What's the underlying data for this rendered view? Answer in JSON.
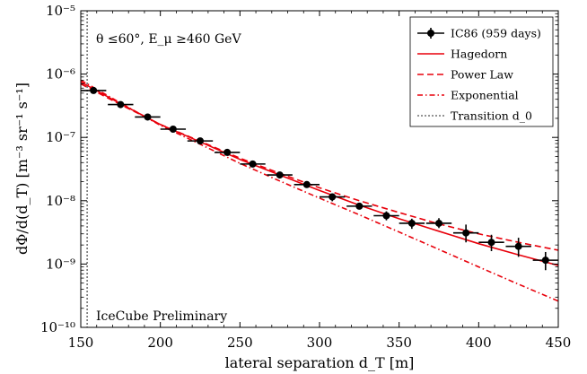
{
  "chart_data": {
    "type": "scatter",
    "xlabel": "lateral separation d_T [m]",
    "ylabel": "dΦ/d(d_T)  [m⁻³ sr⁻¹ s⁻¹]",
    "xlim": [
      150,
      450
    ],
    "ylim": [
      1e-10,
      1e-05
    ],
    "y_scale": "log",
    "x_ticks": [
      "150",
      "200",
      "250",
      "300",
      "350",
      "400",
      "450"
    ],
    "y_ticks": [
      "10⁻¹⁰",
      "10⁻⁹",
      "10⁻⁸",
      "10⁻⁷",
      "10⁻⁶",
      "10⁻⁵"
    ],
    "annotations": {
      "cut": "θ ≤60°,  E_μ ≥460 GeV",
      "preliminary": "IceCube Preliminary"
    },
    "legend_position": "top-right",
    "series": [
      {
        "name": "IC86 (959 days)",
        "kind": "data",
        "color": "#000000",
        "points": [
          {
            "x": 158,
            "xerr": 8,
            "y": 5.5e-07,
            "ylo": 5.1e-07,
            "yhi": 5.9e-07
          },
          {
            "x": 175,
            "xerr": 8,
            "y": 3.3e-07,
            "ylo": 3.1e-07,
            "yhi": 3.5e-07
          },
          {
            "x": 192,
            "xerr": 8,
            "y": 2.1e-07,
            "ylo": 1.95e-07,
            "yhi": 2.25e-07
          },
          {
            "x": 208,
            "xerr": 8,
            "y": 1.35e-07,
            "ylo": 1.26e-07,
            "yhi": 1.45e-07
          },
          {
            "x": 225,
            "xerr": 8,
            "y": 8.8e-08,
            "ylo": 8.2e-08,
            "yhi": 9.4e-08
          },
          {
            "x": 242,
            "xerr": 8,
            "y": 5.8e-08,
            "ylo": 5.4e-08,
            "yhi": 6.2e-08
          },
          {
            "x": 258,
            "xerr": 8,
            "y": 3.8e-08,
            "ylo": 3.5e-08,
            "yhi": 4.1e-08
          },
          {
            "x": 275,
            "xerr": 8,
            "y": 2.55e-08,
            "ylo": 2.35e-08,
            "yhi": 2.75e-08
          },
          {
            "x": 292,
            "xerr": 8,
            "y": 1.8e-08,
            "ylo": 1.6e-08,
            "yhi": 2e-08
          },
          {
            "x": 308,
            "xerr": 8,
            "y": 1.15e-08,
            "ylo": 9.8e-09,
            "yhi": 1.3e-08
          },
          {
            "x": 325,
            "xerr": 8,
            "y": 8.2e-09,
            "ylo": 7.3e-09,
            "yhi": 9.1e-09
          },
          {
            "x": 342,
            "xerr": 8,
            "y": 5.8e-09,
            "ylo": 4.9e-09,
            "yhi": 6.8e-09
          },
          {
            "x": 358,
            "xerr": 8,
            "y": 4.4e-09,
            "ylo": 3.6e-09,
            "yhi": 5.2e-09
          },
          {
            "x": 375,
            "xerr": 8,
            "y": 4.4e-09,
            "ylo": 3.7e-09,
            "yhi": 5.3e-09
          },
          {
            "x": 392,
            "xerr": 8,
            "y": 3.1e-09,
            "ylo": 2.2e-09,
            "yhi": 4.2e-09
          },
          {
            "x": 408,
            "xerr": 8,
            "y": 2.2e-09,
            "ylo": 1.6e-09,
            "yhi": 2.9e-09
          },
          {
            "x": 425,
            "xerr": 8,
            "y": 1.9e-09,
            "ylo": 1.3e-09,
            "yhi": 2.6e-09
          },
          {
            "x": 442,
            "xerr": 8,
            "y": 1.15e-09,
            "ylo": 8e-10,
            "yhi": 1.55e-09
          }
        ]
      },
      {
        "name": "Hagedorn",
        "kind": "line",
        "style": "solid",
        "color": "#e8000b",
        "x": [
          150,
          175,
          200,
          225,
          250,
          275,
          300,
          325,
          350,
          375,
          400,
          425,
          450
        ],
        "y": [
          7.5e-07,
          3.4e-07,
          1.6e-07,
          8.5e-08,
          4.5e-08,
          2.55e-08,
          1.45e-08,
          8.5e-09,
          5.2e-09,
          3.3e-09,
          2.1e-09,
          1.4e-09,
          9.5e-10
        ]
      },
      {
        "name": "Power Law",
        "kind": "line",
        "style": "dashed",
        "color": "#e8000b",
        "x": [
          150,
          175,
          200,
          225,
          250,
          275,
          300,
          325,
          350,
          375,
          400,
          425,
          450
        ],
        "y": [
          7e-07,
          3.3e-07,
          1.6e-07,
          8.7e-08,
          4.7e-08,
          2.7e-08,
          1.6e-08,
          1e-08,
          6.5e-09,
          4.3e-09,
          3e-09,
          2.2e-09,
          1.65e-09
        ]
      },
      {
        "name": "Exponential",
        "kind": "line",
        "style": "dashdot",
        "color": "#e8000b",
        "x": [
          150,
          175,
          200,
          225,
          250,
          275,
          300,
          325,
          350,
          375,
          400,
          425,
          450
        ],
        "y": [
          8e-07,
          3.5e-07,
          1.55e-07,
          7.8e-08,
          3.9e-08,
          2.05e-08,
          1.1e-08,
          6e-09,
          3.2e-09,
          1.7e-09,
          9e-10,
          4.8e-10,
          2.6e-10
        ]
      },
      {
        "name": "Transition d_0",
        "kind": "vline",
        "style": "dotted",
        "color": "#555555",
        "x": 154
      }
    ]
  }
}
